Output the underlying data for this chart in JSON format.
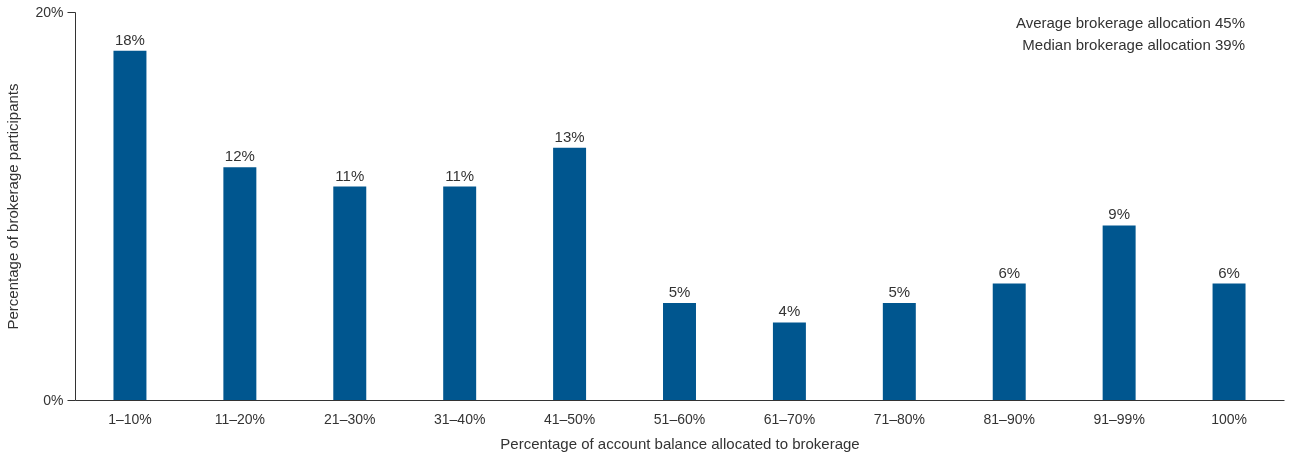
{
  "chart_data": {
    "type": "bar",
    "xlabel": "Percentage of account balance allocated to brokerage",
    "ylabel": "Percentage of brokerage participants",
    "categories": [
      "1–10%",
      "11–20%",
      "21–30%",
      "31–40%",
      "41–50%",
      "51–60%",
      "61–70%",
      "71–80%",
      "81–90%",
      "91–99%",
      "100%"
    ],
    "values": [
      18,
      12,
      11,
      11,
      13,
      5,
      4,
      5,
      6,
      9,
      6
    ],
    "value_labels": [
      "18%",
      "12%",
      "11%",
      "11%",
      "13%",
      "5%",
      "4%",
      "5%",
      "6%",
      "9%",
      "6%"
    ],
    "color": "#00568f",
    "ylim": [
      0,
      20
    ],
    "yticks": [
      {
        "value": 0,
        "label": "0%"
      },
      {
        "value": 20,
        "label": "20%"
      }
    ],
    "grid": false,
    "annotations": [
      "Average brokerage allocation 45%",
      "Median brokerage allocation 39%"
    ]
  }
}
